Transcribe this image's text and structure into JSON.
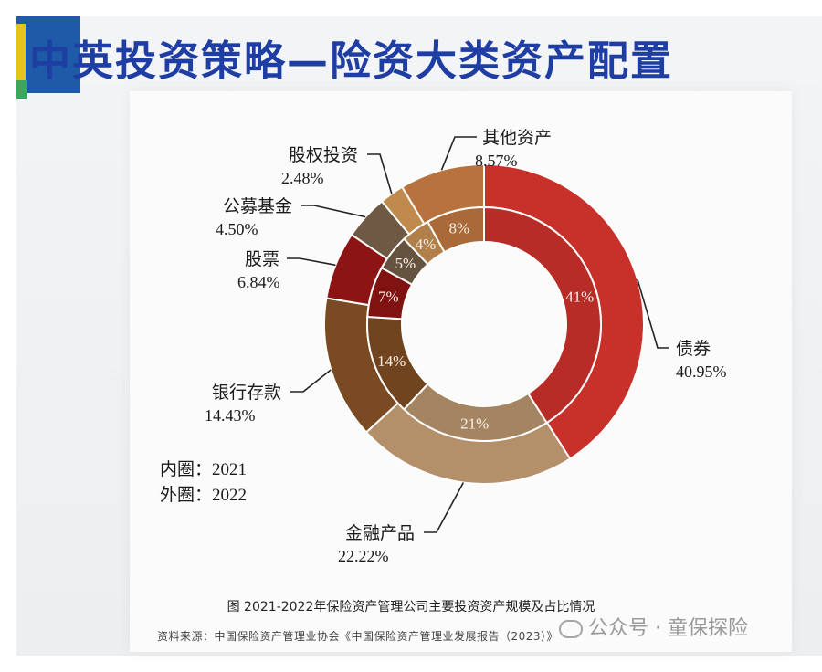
{
  "header": {
    "title": "中英投资策略—险资大类资产配置"
  },
  "figure": {
    "caption": "图  2021-2022年保险资产管理公司主要投资资产规模及占比情况",
    "source": "资料来源：中国保险资产管理业协会《中国保险资产管理业发展报告（2023）》"
  },
  "watermark": {
    "text": "公众号 · 童保探险"
  },
  "chart_data": {
    "type": "donut",
    "legend": {
      "inner": "内圈：2021",
      "outer": "外圈：2022"
    },
    "categories": [
      "债券",
      "金融产品",
      "银行存款",
      "股票",
      "公募基金",
      "股权投资",
      "其他资产"
    ],
    "series": [
      {
        "name": "2022",
        "ring": "outer",
        "values": [
          40.95,
          22.22,
          14.43,
          6.84,
          4.5,
          2.48,
          8.57
        ],
        "labels": [
          "40.95%",
          "22.22%",
          "14.43%",
          "6.84%",
          "4.50%",
          "2.48%",
          "8.57%"
        ]
      },
      {
        "name": "2021",
        "ring": "inner",
        "values": [
          41,
          21,
          14,
          7,
          5,
          4,
          8
        ],
        "labels": [
          "41%",
          "21%",
          "14%",
          "7%",
          "5%",
          "4%",
          "8%"
        ]
      }
    ],
    "colors": {
      "债券": "#c8302a",
      "金融产品": "#b38f6a",
      "银行存款": "#7a4a22",
      "股票": "#8c1414",
      "公募基金": "#6e5a44",
      "股权投资": "#c08a4f",
      "其他资产": "#b8723d"
    }
  }
}
